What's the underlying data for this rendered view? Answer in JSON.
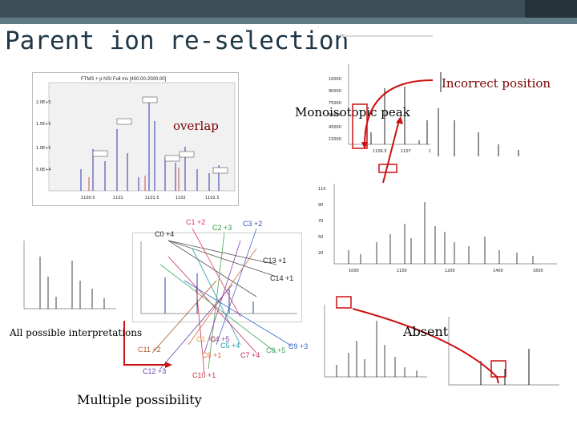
{
  "slide": {
    "title": "Parent ion re-selection",
    "labels": {
      "overlap": "overlap",
      "incorrect_position": "Incorrect position",
      "monoisotopic_peak": "Monoisotopic peak",
      "all_interpretations": "All possible interpretations",
      "absent": "Absent",
      "multiple_possibility": "Multiple possibility"
    },
    "spectrum_panel_header": "FTMS + p NSI Full ms [400.00-2000.00]",
    "charge_states": [
      "C1 +2",
      "C2 +3",
      "C3 +2",
      "C0 +4",
      "C13 +1",
      "C14 +1",
      "C1 +3",
      "C4 +5",
      "C5 +4",
      "C6 +1",
      "C7 +4",
      "C8 +5",
      "C9 +3",
      "C11 +2",
      "C12 +3",
      "C10 +1"
    ],
    "colors": {
      "title": "#1f3746",
      "arrow": "#cc1111",
      "charge_label": "#e0365f",
      "header_bar": "#3c4f57"
    }
  }
}
